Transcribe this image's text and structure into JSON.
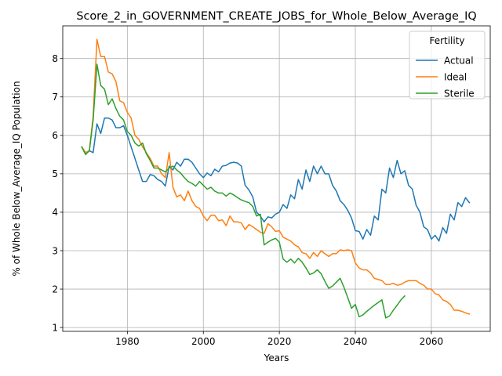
{
  "chart_data": {
    "type": "line",
    "title": "Score_2_in_GOVERNMENT_CREATE_JOBS_for_Whole_Below_Average_IQ",
    "xlabel": "Years",
    "ylabel": "% of Whole Below_Average_IQ Population",
    "xlim": [
      1963,
      2075.5
    ],
    "ylim": [
      0.9,
      8.85
    ],
    "xticks": [
      1980,
      2000,
      2020,
      2040,
      2060
    ],
    "yticks": [
      1,
      2,
      3,
      4,
      5,
      6,
      7,
      8
    ],
    "grid": true,
    "legend": {
      "title": "Fertility",
      "position": "top-right"
    },
    "series": [
      {
        "name": "Actual",
        "color": "#1f77b4",
        "x": [
          1968,
          1969,
          1970,
          1971,
          1972,
          1973,
          1974,
          1975,
          1976,
          1977,
          1978,
          1979,
          1980,
          1981,
          1982,
          1983,
          1984,
          1985,
          1986,
          1987,
          1988,
          1989,
          1990,
          1991,
          1992,
          1993,
          1994,
          1995,
          1996,
          1997,
          1998,
          1999,
          2000,
          2001,
          2002,
          2003,
          2004,
          2005,
          2006,
          2007,
          2008,
          2009,
          2010,
          2011,
          2012,
          2013,
          2014,
          2015,
          2016,
          2017,
          2018,
          2019,
          2020,
          2021,
          2022,
          2023,
          2024,
          2025,
          2026,
          2027,
          2028,
          2029,
          2030,
          2031,
          2032,
          2033,
          2034,
          2035,
          2036,
          2037,
          2038,
          2039,
          2040,
          2041,
          2042,
          2043,
          2044,
          2045,
          2046,
          2047,
          2048,
          2049,
          2050,
          2051,
          2052,
          2053,
          2054,
          2055,
          2056,
          2057,
          2058,
          2059,
          2060,
          2061,
          2062,
          2063,
          2064,
          2065,
          2066,
          2067,
          2068,
          2069,
          2070
        ],
        "y": [
          5.7,
          5.55,
          5.6,
          5.55,
          6.3,
          6.05,
          6.45,
          6.45,
          6.4,
          6.2,
          6.2,
          6.25,
          6.0,
          5.7,
          5.4,
          5.1,
          4.8,
          4.8,
          4.98,
          4.95,
          4.85,
          4.8,
          4.68,
          5.2,
          5.1,
          5.3,
          5.2,
          5.38,
          5.38,
          5.3,
          5.15,
          5.0,
          4.9,
          5.02,
          4.95,
          5.12,
          5.05,
          5.2,
          5.22,
          5.28,
          5.3,
          5.28,
          5.2,
          4.7,
          4.58,
          4.4,
          4.0,
          3.9,
          3.75,
          3.88,
          3.85,
          3.95,
          4.0,
          4.2,
          4.1,
          4.45,
          4.35,
          4.85,
          4.6,
          5.1,
          4.8,
          5.2,
          5.0,
          5.2,
          5.0,
          5.0,
          4.7,
          4.55,
          4.3,
          4.2,
          4.05,
          3.85,
          3.52,
          3.5,
          3.3,
          3.55,
          3.4,
          3.9,
          3.8,
          4.6,
          4.5,
          5.15,
          4.9,
          5.35,
          5.0,
          5.08,
          4.7,
          4.6,
          4.18,
          4.0,
          3.62,
          3.55,
          3.3,
          3.4,
          3.25,
          3.6,
          3.45,
          3.95,
          3.8,
          4.25,
          4.15,
          4.38,
          4.25
        ]
      },
      {
        "name": "Ideal",
        "color": "#ff7f0e",
        "x": [
          1968,
          1969,
          1970,
          1971,
          1972,
          1973,
          1974,
          1975,
          1976,
          1977,
          1978,
          1979,
          1980,
          1981,
          1982,
          1983,
          1984,
          1985,
          1986,
          1987,
          1988,
          1989,
          1990,
          1991,
          1992,
          1993,
          1994,
          1995,
          1996,
          1997,
          1998,
          1999,
          2000,
          2001,
          2002,
          2003,
          2004,
          2005,
          2006,
          2007,
          2008,
          2009,
          2010,
          2011,
          2012,
          2013,
          2014,
          2015,
          2016,
          2017,
          2018,
          2019,
          2020,
          2021,
          2022,
          2023,
          2024,
          2025,
          2026,
          2027,
          2028,
          2029,
          2030,
          2031,
          2032,
          2033,
          2034,
          2035,
          2036,
          2037,
          2038,
          2039,
          2040,
          2041,
          2042,
          2043,
          2044,
          2045,
          2046,
          2047,
          2048,
          2049,
          2050,
          2051,
          2052,
          2053,
          2054,
          2055,
          2056,
          2057,
          2058,
          2059,
          2060,
          2061,
          2062,
          2063,
          2064,
          2065,
          2066,
          2067,
          2068,
          2069,
          2070
        ],
        "y": [
          5.7,
          5.55,
          5.6,
          6.5,
          8.5,
          8.05,
          8.05,
          7.65,
          7.6,
          7.4,
          6.9,
          6.85,
          6.6,
          6.45,
          6.0,
          5.9,
          5.7,
          5.55,
          5.4,
          5.2,
          5.2,
          5.0,
          4.9,
          5.55,
          4.65,
          4.4,
          4.45,
          4.3,
          4.55,
          4.3,
          4.15,
          4.1,
          3.9,
          3.78,
          3.92,
          3.92,
          3.78,
          3.8,
          3.65,
          3.9,
          3.75,
          3.75,
          3.72,
          3.55,
          3.68,
          3.62,
          3.55,
          3.48,
          3.45,
          3.7,
          3.62,
          3.5,
          3.52,
          3.35,
          3.3,
          3.25,
          3.15,
          3.1,
          2.95,
          2.92,
          2.8,
          2.95,
          2.85,
          3.0,
          2.92,
          2.85,
          2.92,
          2.92,
          3.02,
          3.0,
          3.02,
          3.0,
          2.68,
          2.55,
          2.5,
          2.5,
          2.42,
          2.28,
          2.25,
          2.22,
          2.12,
          2.12,
          2.15,
          2.1,
          2.12,
          2.18,
          2.22,
          2.22,
          2.22,
          2.15,
          2.1,
          2.0,
          2.0,
          1.88,
          1.85,
          1.72,
          1.68,
          1.6,
          1.45,
          1.45,
          1.42,
          1.38,
          1.35
        ]
      },
      {
        "name": "Sterile",
        "color": "#2ca02c",
        "x": [
          1968,
          1969,
          1970,
          1971,
          1972,
          1973,
          1974,
          1975,
          1976,
          1977,
          1978,
          1979,
          1980,
          1981,
          1982,
          1983,
          1984,
          1985,
          1986,
          1987,
          1988,
          1989,
          1990,
          1991,
          1992,
          1993,
          1994,
          1995,
          1996,
          1997,
          1998,
          1999,
          2000,
          2001,
          2002,
          2003,
          2004,
          2005,
          2006,
          2007,
          2008,
          2009,
          2010,
          2011,
          2012,
          2013,
          2014,
          2015,
          2016,
          2017,
          2018,
          2019,
          2020,
          2021,
          2022,
          2023,
          2024,
          2025,
          2026,
          2027,
          2028,
          2029,
          2030,
          2031,
          2032,
          2033,
          2034,
          2035,
          2036,
          2037,
          2038,
          2039,
          2040,
          2041,
          2042,
          2043,
          2044,
          2045,
          2046,
          2047,
          2048,
          2049,
          2050,
          2051,
          2052,
          2053
        ],
        "y": [
          5.7,
          5.5,
          5.6,
          6.4,
          7.85,
          7.3,
          7.2,
          6.8,
          6.95,
          6.7,
          6.5,
          6.4,
          6.1,
          6.0,
          5.8,
          5.72,
          5.8,
          5.52,
          5.35,
          5.15,
          5.15,
          5.1,
          5.05,
          5.15,
          5.2,
          5.1,
          5.02,
          4.9,
          4.8,
          4.75,
          4.68,
          4.8,
          4.7,
          4.6,
          4.65,
          4.55,
          4.5,
          4.5,
          4.42,
          4.5,
          4.45,
          4.38,
          4.32,
          4.28,
          4.25,
          4.15,
          3.9,
          3.95,
          3.15,
          3.22,
          3.28,
          3.32,
          3.22,
          2.78,
          2.7,
          2.78,
          2.68,
          2.8,
          2.7,
          2.55,
          2.38,
          2.42,
          2.5,
          2.4,
          2.2,
          2.02,
          2.08,
          2.18,
          2.28,
          2.05,
          1.78,
          1.5,
          1.6,
          1.28,
          1.33,
          1.42,
          1.5,
          1.58,
          1.65,
          1.72,
          1.25,
          1.3,
          1.45,
          1.58,
          1.72,
          1.82
        ]
      }
    ]
  }
}
